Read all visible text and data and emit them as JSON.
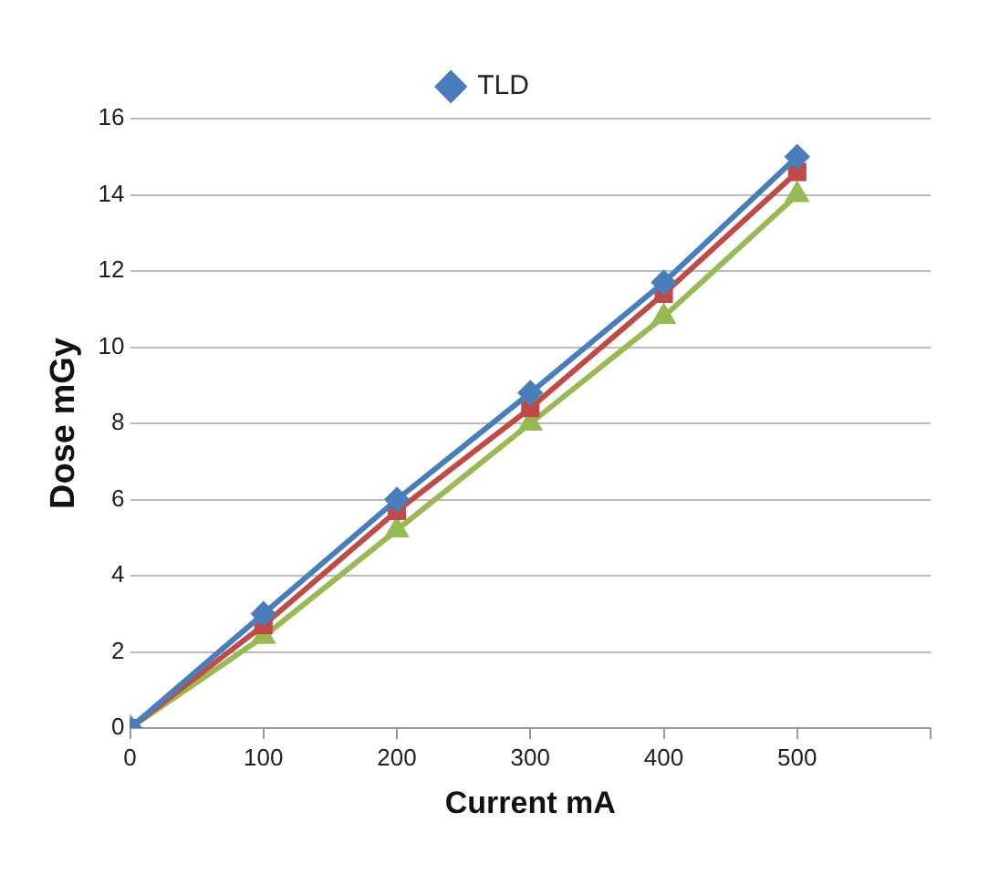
{
  "chart_data": {
    "type": "line",
    "xlabel": "Current mA",
    "ylabel": "Dose mGy",
    "x": [
      0,
      100,
      200,
      300,
      400,
      500
    ],
    "series": [
      {
        "name": "TLD",
        "color": "#4a7ebb",
        "marker": "diamond",
        "values": [
          0,
          3,
          6,
          8.8,
          11.7,
          15
        ]
      },
      {
        "color": "#be4b48",
        "marker": "square",
        "values": [
          0,
          2.7,
          5.7,
          8.4,
          11.4,
          14.6
        ]
      },
      {
        "color": "#98b954",
        "marker": "triangle",
        "values": [
          0,
          2.4,
          5.2,
          8,
          10.8,
          14
        ]
      }
    ],
    "xlim": [
      0,
      600
    ],
    "xticks": [
      0,
      100,
      200,
      300,
      400,
      500,
      {
        "value": 600,
        "label": null
      }
    ],
    "ylim": [
      0,
      16
    ],
    "yticks": [
      0,
      2,
      4,
      6,
      8,
      10,
      12,
      14,
      16
    ],
    "grid": "y",
    "legend": "top",
    "line_style": "solid"
  }
}
